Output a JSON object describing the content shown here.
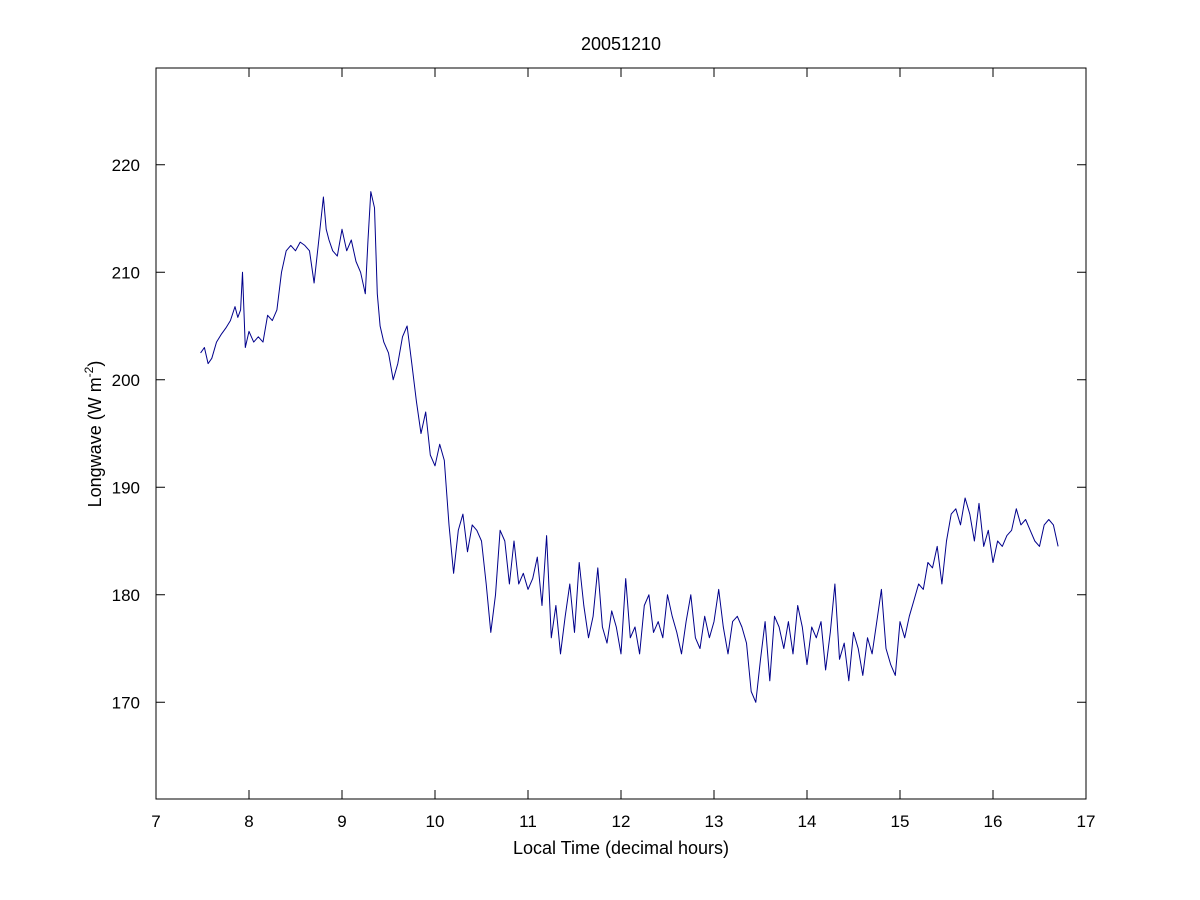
{
  "chart_data": {
    "type": "line",
    "title": "20051210",
    "xlabel": "Local Time (decimal hours)",
    "ylabel_main": "Longwave (W m",
    "ylabel_sup": "-2",
    "ylabel_close": ")",
    "xlim": [
      7,
      17
    ],
    "ylim": [
      161,
      229
    ],
    "x_ticks": [
      7,
      8,
      9,
      10,
      11,
      12,
      13,
      14,
      15,
      16,
      17
    ],
    "y_ticks": [
      170,
      180,
      190,
      200,
      210,
      220
    ],
    "grid": false,
    "line_color": "#00008b",
    "series": [
      {
        "x": [
          7.48,
          7.52,
          7.56,
          7.6,
          7.65,
          7.7,
          7.75,
          7.8,
          7.85,
          7.88,
          7.91,
          7.93,
          7.96,
          8.0,
          8.05,
          8.1,
          8.15,
          8.2,
          8.25,
          8.3,
          8.35,
          8.4,
          8.45,
          8.5,
          8.55,
          8.6,
          8.65,
          8.7,
          8.75,
          8.8,
          8.83,
          8.86,
          8.9,
          8.95,
          9.0,
          9.05,
          9.1,
          9.15,
          9.2,
          9.25,
          9.28,
          9.31,
          9.35,
          9.38,
          9.41,
          9.45,
          9.5,
          9.55,
          9.6,
          9.65,
          9.7,
          9.75,
          9.8,
          9.85,
          9.9,
          9.95,
          10.0,
          10.05,
          10.1,
          10.15,
          10.2,
          10.25,
          10.3,
          10.35,
          10.4,
          10.45,
          10.5,
          10.55,
          10.6,
          10.65,
          10.7,
          10.75,
          10.8,
          10.85,
          10.9,
          10.95,
          11.0,
          11.05,
          11.1,
          11.15,
          11.2,
          11.25,
          11.3,
          11.35,
          11.4,
          11.45,
          11.5,
          11.55,
          11.6,
          11.65,
          11.7,
          11.75,
          11.8,
          11.85,
          11.9,
          11.95,
          12.0,
          12.05,
          12.1,
          12.15,
          12.2,
          12.25,
          12.3,
          12.35,
          12.4,
          12.45,
          12.5,
          12.55,
          12.6,
          12.65,
          12.7,
          12.75,
          12.8,
          12.85,
          12.9,
          12.95,
          13.0,
          13.05,
          13.1,
          13.15,
          13.2,
          13.25,
          13.3,
          13.35,
          13.4,
          13.45,
          13.5,
          13.55,
          13.6,
          13.65,
          13.7,
          13.75,
          13.8,
          13.85,
          13.9,
          13.95,
          14.0,
          14.05,
          14.1,
          14.15,
          14.2,
          14.25,
          14.3,
          14.35,
          14.4,
          14.45,
          14.5,
          14.55,
          14.6,
          14.65,
          14.7,
          14.75,
          14.8,
          14.85,
          14.9,
          14.95,
          15.0,
          15.05,
          15.1,
          15.15,
          15.2,
          15.25,
          15.3,
          15.35,
          15.4,
          15.45,
          15.5,
          15.55,
          15.6,
          15.65,
          15.7,
          15.75,
          15.8,
          15.85,
          15.9,
          15.95,
          16.0,
          16.05,
          16.1,
          16.15,
          16.2,
          16.25,
          16.3,
          16.35,
          16.4,
          16.45,
          16.5,
          16.55,
          16.6,
          16.65,
          16.7
        ],
        "y": [
          202.5,
          203.0,
          201.5,
          202.0,
          203.5,
          204.2,
          204.8,
          205.5,
          206.8,
          205.8,
          206.5,
          210.0,
          203.0,
          204.5,
          203.5,
          204.0,
          203.5,
          206.0,
          205.5,
          206.5,
          210.0,
          212.0,
          212.5,
          212.0,
          212.8,
          212.5,
          212.0,
          209.0,
          213.0,
          217.0,
          214.0,
          213.0,
          212.0,
          211.5,
          214.0,
          212.0,
          213.0,
          211.0,
          210.0,
          208.0,
          213.0,
          217.5,
          216.0,
          208.0,
          205.0,
          203.5,
          202.5,
          200.0,
          201.5,
          204.0,
          205.0,
          201.5,
          198.0,
          195.0,
          197.0,
          193.0,
          192.0,
          194.0,
          192.5,
          186.5,
          182.0,
          186.0,
          187.5,
          184.0,
          186.5,
          186.0,
          185.0,
          181.0,
          176.5,
          180.0,
          186.0,
          185.0,
          181.0,
          185.0,
          181.0,
          182.0,
          180.5,
          181.5,
          183.5,
          179.0,
          185.5,
          176.0,
          179.0,
          174.5,
          178.0,
          181.0,
          176.5,
          183.0,
          179.0,
          176.0,
          178.0,
          182.5,
          177.0,
          175.5,
          178.5,
          177.0,
          174.5,
          181.5,
          176.0,
          177.0,
          174.5,
          179.0,
          180.0,
          176.5,
          177.5,
          176.0,
          180.0,
          178.0,
          176.5,
          174.5,
          177.5,
          180.0,
          176.0,
          175.0,
          178.0,
          176.0,
          177.5,
          180.5,
          177.0,
          174.5,
          177.5,
          178.0,
          177.0,
          175.5,
          171.0,
          170.0,
          174.0,
          177.5,
          172.0,
          178.0,
          177.0,
          175.0,
          177.5,
          174.5,
          179.0,
          177.0,
          173.5,
          177.0,
          176.0,
          177.5,
          173.0,
          176.5,
          181.0,
          174.0,
          175.5,
          172.0,
          176.5,
          175.0,
          172.5,
          176.0,
          174.5,
          177.5,
          180.5,
          175.0,
          173.5,
          172.5,
          177.5,
          176.0,
          178.0,
          179.5,
          181.0,
          180.5,
          183.0,
          182.5,
          184.5,
          181.0,
          185.0,
          187.5,
          188.0,
          186.5,
          189.0,
          187.5,
          185.0,
          188.5,
          184.5,
          186.0,
          183.0,
          185.0,
          184.5,
          185.5,
          186.0,
          188.0,
          186.5,
          187.0,
          186.0,
          185.0,
          184.5,
          186.5,
          187.0,
          186.5,
          184.5
        ]
      }
    ]
  }
}
